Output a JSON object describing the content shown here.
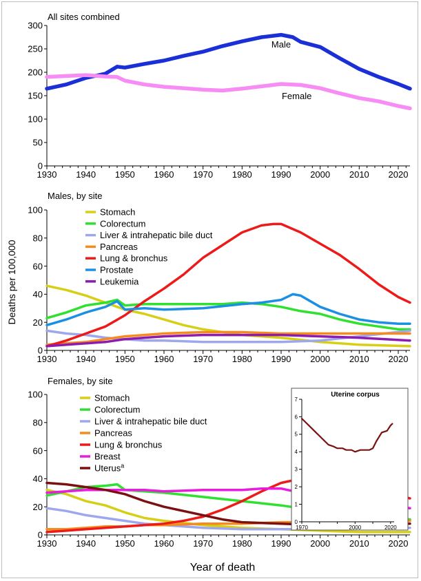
{
  "shared": {
    "ylabel": "Deaths per 100,000",
    "xlabel": "Year of death",
    "x_ticks": [
      1930,
      1940,
      1950,
      1960,
      1970,
      1980,
      1990,
      2000,
      2010,
      2020
    ]
  },
  "chart_data": [
    {
      "type": "line",
      "title": "All sites combined",
      "xlim": [
        1930,
        2023
      ],
      "ylim": [
        0,
        300
      ],
      "y_ticks": [
        0,
        50,
        100,
        150,
        200,
        250,
        300
      ],
      "series": [
        {
          "name": "Male",
          "color": "#1a2fd6",
          "label_at": [
            1990,
            253
          ],
          "x": [
            1930,
            1935,
            1940,
            1945,
            1948,
            1950,
            1955,
            1960,
            1965,
            1970,
            1975,
            1980,
            1985,
            1990,
            1993,
            1995,
            2000,
            2005,
            2010,
            2015,
            2020,
            2023
          ],
          "y": [
            165,
            174,
            188,
            197,
            212,
            210,
            218,
            225,
            235,
            244,
            256,
            266,
            275,
            280,
            275,
            265,
            254,
            230,
            207,
            190,
            175,
            165
          ]
        },
        {
          "name": "Female",
          "color": "#f78cf5",
          "label_at": [
            1994,
            143
          ],
          "x": [
            1930,
            1935,
            1940,
            1945,
            1948,
            1950,
            1955,
            1960,
            1965,
            1970,
            1975,
            1980,
            1985,
            1990,
            1995,
            2000,
            2005,
            2010,
            2015,
            2020,
            2023
          ],
          "y": [
            190,
            192,
            194,
            191,
            190,
            182,
            174,
            169,
            166,
            163,
            161,
            165,
            170,
            175,
            173,
            166,
            155,
            145,
            138,
            128,
            123
          ]
        }
      ]
    },
    {
      "type": "line",
      "title": "Males, by site",
      "xlim": [
        1930,
        2023
      ],
      "ylim": [
        0,
        100
      ],
      "y_ticks": [
        0,
        20,
        40,
        60,
        80,
        100
      ],
      "series": [
        {
          "name": "Stomach",
          "color": "#d6cf16",
          "x": [
            1930,
            1935,
            1940,
            1945,
            1950,
            1955,
            1960,
            1965,
            1970,
            1975,
            1980,
            1990,
            2000,
            2010,
            2023
          ],
          "y": [
            46,
            43,
            39,
            34,
            29,
            26,
            22,
            18,
            15,
            13,
            11,
            9,
            6,
            4,
            3
          ]
        },
        {
          "name": "Colorectum",
          "color": "#2fe02f",
          "x": [
            1930,
            1935,
            1940,
            1945,
            1948,
            1950,
            1955,
            1960,
            1970,
            1975,
            1980,
            1985,
            1990,
            1995,
            2000,
            2005,
            2010,
            2015,
            2020,
            2023
          ],
          "y": [
            23,
            27,
            32,
            34,
            36,
            32,
            33,
            33,
            33,
            33,
            34,
            33,
            31,
            28,
            26,
            22,
            19,
            17,
            15,
            15
          ]
        },
        {
          "name": "Liver & intrahepatic bile duct",
          "color": "#9fa7ec",
          "x": [
            1930,
            1935,
            1940,
            1945,
            1950,
            1955,
            1960,
            1970,
            1980,
            1990,
            2000,
            2010,
            2023
          ],
          "y": [
            14,
            12,
            11,
            9,
            8,
            7,
            7,
            6,
            6,
            6,
            7,
            10,
            14
          ]
        },
        {
          "name": "Pancreas",
          "color": "#f58a1f",
          "x": [
            1930,
            1935,
            1940,
            1945,
            1950,
            1955,
            1960,
            1970,
            1980,
            1990,
            2000,
            2010,
            2023
          ],
          "y": [
            4,
            5,
            6,
            8,
            10,
            11,
            12,
            13,
            13,
            12,
            12,
            12,
            12
          ]
        },
        {
          "name": "Lung & bronchus",
          "color": "#ed1a1a",
          "x": [
            1930,
            1935,
            1940,
            1945,
            1950,
            1955,
            1960,
            1965,
            1970,
            1975,
            1980,
            1985,
            1988,
            1990,
            1995,
            2000,
            2005,
            2010,
            2015,
            2020,
            2023
          ],
          "y": [
            3,
            7,
            12,
            17,
            25,
            35,
            44,
            54,
            66,
            75,
            84,
            89,
            90,
            90,
            84,
            76,
            68,
            58,
            47,
            38,
            34
          ]
        },
        {
          "name": "Prostate",
          "color": "#1b8fe4",
          "x": [
            1930,
            1935,
            1940,
            1945,
            1948,
            1950,
            1955,
            1960,
            1970,
            1980,
            1985,
            1990,
            1993,
            1995,
            2000,
            2005,
            2010,
            2015,
            2020,
            2023
          ],
          "y": [
            18,
            22,
            27,
            31,
            35,
            29,
            30,
            29,
            30,
            33,
            34,
            36,
            40,
            39,
            31,
            26,
            22,
            20,
            19,
            19
          ]
        },
        {
          "name": "Leukemia",
          "color": "#8d1bb0",
          "x": [
            1930,
            1935,
            1940,
            1945,
            1950,
            1955,
            1960,
            1970,
            1980,
            1990,
            2000,
            2010,
            2023
          ],
          "y": [
            3,
            4,
            5,
            6,
            8,
            9,
            10,
            11,
            11,
            11,
            10,
            9,
            7
          ]
        }
      ]
    },
    {
      "type": "line",
      "title": "Females, by site",
      "xlim": [
        1930,
        2023
      ],
      "ylim": [
        0,
        100
      ],
      "y_ticks": [
        0,
        20,
        40,
        60,
        80,
        100
      ],
      "series": [
        {
          "name": "Stomach",
          "color": "#d6cf16",
          "x": [
            1930,
            1935,
            1940,
            1945,
            1950,
            1955,
            1960,
            1970,
            1980,
            1990,
            2000,
            2010,
            2023
          ],
          "y": [
            32,
            29,
            24,
            21,
            16,
            12,
            10,
            7,
            5,
            4,
            3,
            2,
            2
          ]
        },
        {
          "name": "Colorectum",
          "color": "#2fe02f",
          "x": [
            1930,
            1935,
            1940,
            1945,
            1948,
            1950,
            1955,
            1960,
            1970,
            1980,
            1990,
            2000,
            2010,
            2023
          ],
          "y": [
            28,
            31,
            34,
            35,
            36,
            32,
            31,
            30,
            27,
            24,
            21,
            17,
            13,
            11
          ]
        },
        {
          "name": "Liver & intrahepatic bile duct",
          "color": "#9fa7ec",
          "x": [
            1930,
            1935,
            1940,
            1945,
            1950,
            1955,
            1960,
            1970,
            1980,
            1990,
            2000,
            2010,
            2023
          ],
          "y": [
            19,
            17,
            14,
            12,
            10,
            8,
            7,
            5,
            4,
            4,
            4,
            4,
            5
          ]
        },
        {
          "name": "Pancreas",
          "color": "#f58a1f",
          "x": [
            1930,
            1935,
            1940,
            1945,
            1950,
            1955,
            1960,
            1970,
            1980,
            1990,
            2000,
            2010,
            2023
          ],
          "y": [
            4,
            4,
            5,
            6,
            6,
            7,
            7,
            8,
            8,
            9,
            9,
            10,
            10
          ]
        },
        {
          "name": "Lung & bronchus",
          "color": "#ed1a1a",
          "x": [
            1930,
            1935,
            1940,
            1945,
            1950,
            1955,
            1960,
            1965,
            1970,
            1975,
            1980,
            1985,
            1990,
            1995,
            2000,
            2003,
            2005,
            2010,
            2015,
            2020,
            2023
          ],
          "y": [
            2,
            3,
            4,
            5,
            6,
            7,
            8,
            10,
            13,
            18,
            24,
            31,
            37,
            40,
            41,
            42,
            41,
            39,
            35,
            28,
            26
          ]
        },
        {
          "name": "Breast",
          "color": "#e81bdf",
          "x": [
            1930,
            1935,
            1940,
            1945,
            1950,
            1955,
            1960,
            1970,
            1980,
            1985,
            1990,
            1995,
            2000,
            2005,
            2010,
            2015,
            2020,
            2023
          ],
          "y": [
            30,
            31,
            32,
            32,
            32,
            32,
            31,
            32,
            32,
            33,
            33,
            30,
            27,
            25,
            22,
            21,
            20,
            19
          ]
        },
        {
          "name": "Uterus",
          "sup": "a",
          "color": "#7a1010",
          "x": [
            1930,
            1935,
            1940,
            1945,
            1950,
            1955,
            1960,
            1965,
            1970,
            1975,
            1980,
            1990,
            2000,
            2010,
            2023
          ],
          "y": [
            37,
            36,
            34,
            32,
            29,
            24,
            20,
            17,
            14,
            11,
            9,
            8,
            7,
            7,
            8
          ]
        }
      ]
    },
    {
      "type": "line",
      "title": "Uterine corpus",
      "xlim": [
        1970,
        2022
      ],
      "ylim": [
        0,
        7
      ],
      "y_ticks": [
        0,
        1,
        2,
        3,
        4,
        5,
        6,
        7
      ],
      "x_ticks": [
        1970,
        2000,
        2020
      ],
      "series": [
        {
          "name": "Uterine corpus",
          "color": "#7a1010",
          "x": [
            1970,
            1972,
            1975,
            1978,
            1980,
            1983,
            1985,
            1988,
            1990,
            1993,
            1995,
            1998,
            2000,
            2003,
            2005,
            2008,
            2010,
            2012,
            2015,
            2018,
            2020,
            2021
          ],
          "y": [
            5.9,
            5.7,
            5.4,
            5.1,
            4.9,
            4.6,
            4.4,
            4.3,
            4.2,
            4.2,
            4.1,
            4.1,
            4.0,
            4.1,
            4.1,
            4.1,
            4.2,
            4.6,
            5.1,
            5.2,
            5.5,
            5.6
          ]
        }
      ]
    }
  ]
}
